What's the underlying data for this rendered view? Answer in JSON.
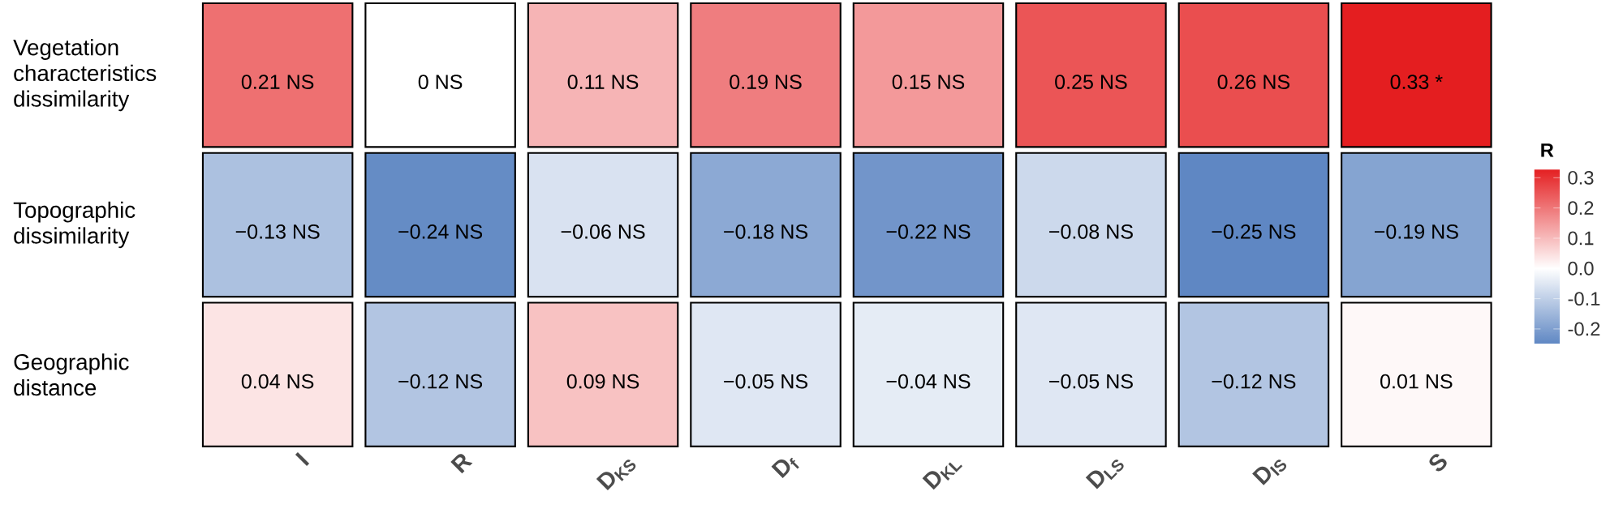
{
  "chart_data": {
    "type": "heatmap",
    "categories": [
      "I",
      "R",
      "D$_{KS}$",
      "D$_{f}$",
      "D$_{KL}$",
      "D$_{LS}$",
      "D$_{IS}$",
      "S"
    ],
    "y_categories": [
      "Vegetation characteristics dissimilarity",
      "Topographic dissimilarity",
      "Geographic distance"
    ],
    "cells": [
      [
        0.21,
        0,
        0.11,
        0.19,
        0.15,
        0.25,
        0.26,
        0.33
      ],
      [
        -0.13,
        -0.24,
        -0.06,
        -0.18,
        -0.22,
        -0.08,
        -0.25,
        -0.19
      ],
      [
        0.04,
        -0.12,
        0.09,
        -0.05,
        -0.04,
        -0.05,
        -0.12,
        0.01
      ]
    ],
    "cell_labels": [
      [
        "0.21 NS",
        "0 NS",
        "0.11 NS",
        "0.19 NS",
        "0.15 NS",
        "0.25 NS",
        "0.26 NS",
        "0.33 *"
      ],
      [
        "−0.13 NS",
        "−0.24 NS",
        "−0.06 NS",
        "−0.18 NS",
        "−0.22 NS",
        "−0.08 NS",
        "−0.25 NS",
        "−0.19 NS"
      ],
      [
        "0.04 NS",
        "−0.12 NS",
        "0.09 NS",
        "−0.05 NS",
        "−0.04 NS",
        "−0.05 NS",
        "−0.12 NS",
        "0.01 NS"
      ]
    ],
    "clim": [
      -0.25,
      0.33
    ],
    "cticks": [
      -0.2,
      -0.1,
      {
        "value": 0,
        "label": "0.0"
      },
      0.1,
      0.2,
      0.3
    ],
    "clabel": "R"
  }
}
